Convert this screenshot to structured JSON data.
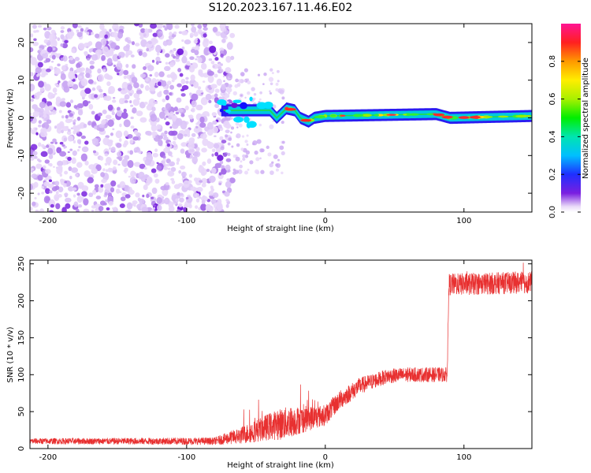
{
  "title": "S120.2023.167.11.46.E02",
  "colors": {
    "snr_line": "#e83030",
    "spectro_noise": "#8a2be2"
  },
  "chart_data": [
    {
      "type": "heatmap",
      "name": "spectrogram",
      "xlabel": "Height of straight line (km)",
      "ylabel": "Frequency (Hz)",
      "xlim": [
        -213,
        149
      ],
      "ylim": [
        -25,
        25
      ],
      "x_ticks": [
        -200,
        -100,
        0,
        100
      ],
      "y_ticks": [
        -20,
        -10,
        0,
        10,
        20
      ],
      "colorbar": {
        "label": "Normalized spectral amplitude",
        "range": [
          0,
          1
        ],
        "ticks": [
          0.0,
          0.2,
          0.4,
          0.6,
          0.8
        ],
        "tick_labels": [
          "0.0",
          "0.2",
          "0.4",
          "0.6",
          "0.8"
        ],
        "colormap": "rainbow-white-low"
      },
      "regions": [
        {
          "kind": "noise",
          "x_range": [
            -213,
            -75
          ],
          "amplitude": 0.15
        },
        {
          "kind": "transition",
          "x_range": [
            -75,
            -30
          ],
          "amplitude": 0.3
        },
        {
          "kind": "tone",
          "x_range": [
            -30,
            149
          ],
          "amplitude": 0.5
        }
      ],
      "tone_path": [
        {
          "x": -75,
          "y": 2
        },
        {
          "x": -40,
          "y": 2
        },
        {
          "x": -35,
          "y": 0
        },
        {
          "x": -28,
          "y": 2.5
        },
        {
          "x": -22,
          "y": 2
        },
        {
          "x": -18,
          "y": 0
        },
        {
          "x": -12,
          "y": -1
        },
        {
          "x": -8,
          "y": 0
        },
        {
          "x": 0,
          "y": 0.5
        },
        {
          "x": 80,
          "y": 1
        },
        {
          "x": 90,
          "y": 0
        },
        {
          "x": 149,
          "y": 0.5
        }
      ]
    },
    {
      "type": "line",
      "name": "snr",
      "xlabel": "Height of straight line (km)",
      "ylabel": "SNR (10 * v/v)",
      "xlim": [
        -213,
        149
      ],
      "ylim": [
        0,
        255
      ],
      "x_ticks": [
        -200,
        -100,
        0,
        100
      ],
      "y_ticks": [
        0,
        50,
        100,
        150,
        200,
        250
      ],
      "series": [
        {
          "trend": [
            {
              "x": -213,
              "y": 10
            },
            {
              "x": -80,
              "y": 10
            },
            {
              "x": -60,
              "y": 18
            },
            {
              "x": -40,
              "y": 30
            },
            {
              "x": -20,
              "y": 38
            },
            {
              "x": 0,
              "y": 45
            },
            {
              "x": 10,
              "y": 65
            },
            {
              "x": 25,
              "y": 85
            },
            {
              "x": 45,
              "y": 98
            },
            {
              "x": 60,
              "y": 100
            },
            {
              "x": 88,
              "y": 100
            },
            {
              "x": 89,
              "y": 222
            },
            {
              "x": 149,
              "y": 225
            }
          ],
          "noise": [
            {
              "x": -213,
              "y": 4
            },
            {
              "x": -80,
              "y": 5
            },
            {
              "x": -60,
              "y": 12
            },
            {
              "x": -30,
              "y": 22
            },
            {
              "x": 0,
              "y": 14
            },
            {
              "x": 40,
              "y": 10
            },
            {
              "x": 88,
              "y": 10
            },
            {
              "x": 89,
              "y": 15
            },
            {
              "x": 149,
              "y": 15
            }
          ]
        }
      ]
    }
  ]
}
